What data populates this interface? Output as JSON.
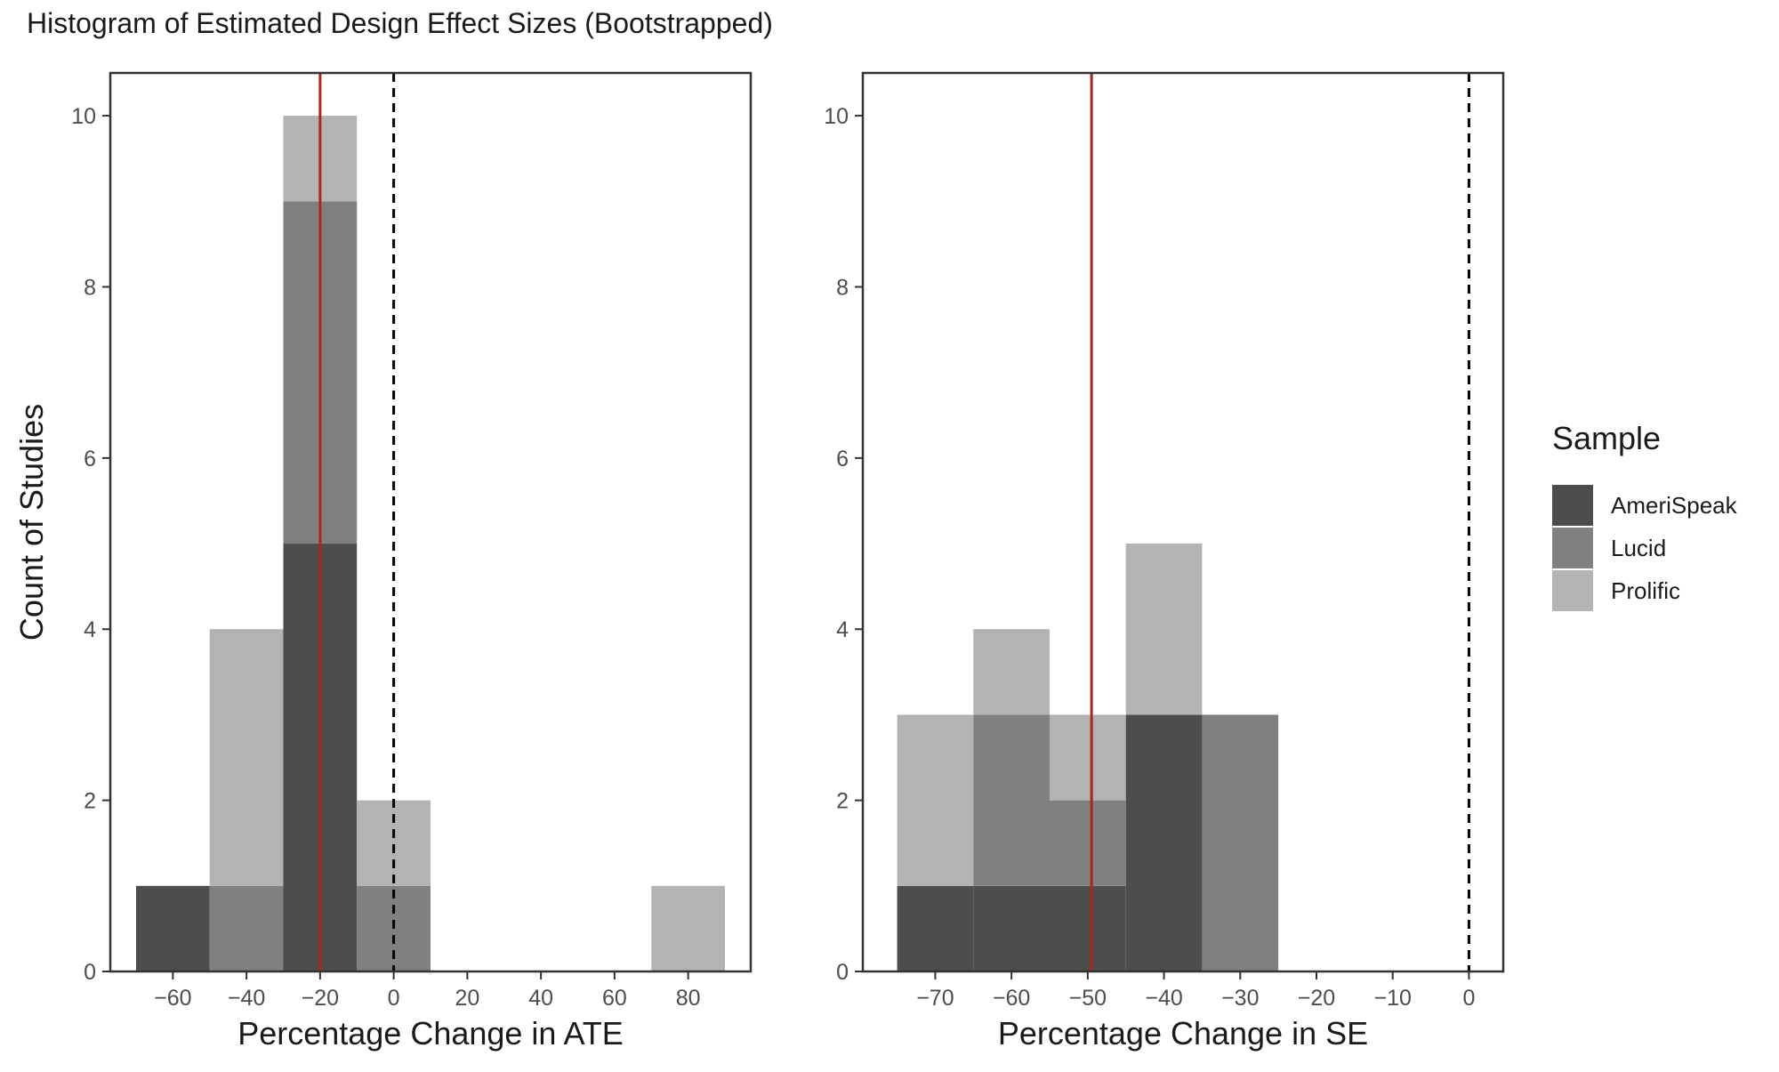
{
  "title": "Histogram of Estimated Design Effect Sizes (Bootstrapped)",
  "legend": {
    "title": "Sample",
    "items": [
      {
        "label": "AmeriSpeak",
        "color": "#4d4d4d"
      },
      {
        "label": "Lucid",
        "color": "#808080"
      },
      {
        "label": "Prolific",
        "color": "#b3b3b3"
      }
    ]
  },
  "chart_data": [
    {
      "type": "bar",
      "stacked": true,
      "histogram": true,
      "xlabel": "Percentage Change in ATE",
      "ylabel": "Count of Studies",
      "xlim": [
        -77,
        97
      ],
      "ylim": [
        0,
        10.5
      ],
      "xticks": [
        -60,
        -40,
        -20,
        0,
        20,
        40,
        60,
        80
      ],
      "xtick_labels": [
        "−60",
        "−40",
        "−20",
        "0",
        "20",
        "40",
        "60",
        "80"
      ],
      "yticks": [
        0,
        2,
        4,
        6,
        8,
        10
      ],
      "bins": [
        [
          -70,
          -50
        ],
        [
          -50,
          -30
        ],
        [
          -30,
          -10
        ],
        [
          -10,
          10
        ],
        [
          70,
          90
        ]
      ],
      "series": [
        {
          "name": "AmeriSpeak",
          "values": [
            1,
            0,
            5,
            0,
            0
          ]
        },
        {
          "name": "Lucid",
          "values": [
            0,
            1,
            4,
            1,
            0
          ]
        },
        {
          "name": "Prolific",
          "values": [
            0,
            3,
            1,
            1,
            1
          ]
        }
      ],
      "vlines": [
        {
          "x": -20,
          "color": "#b22222",
          "style": "solid"
        },
        {
          "x": 0,
          "color": "#000000",
          "style": "dashed"
        }
      ],
      "grid": false
    },
    {
      "type": "bar",
      "stacked": true,
      "histogram": true,
      "xlabel": "Percentage Change in SE",
      "ylabel": "",
      "xlim": [
        -79.5,
        4.5
      ],
      "ylim": [
        0,
        10.5
      ],
      "xticks": [
        -70,
        -60,
        -50,
        -40,
        -30,
        -20,
        -10,
        0
      ],
      "xtick_labels": [
        "−70",
        "−60",
        "−50",
        "−40",
        "−30",
        "−20",
        "−10",
        "0"
      ],
      "yticks": [
        0,
        2,
        4,
        6,
        8,
        10
      ],
      "bins": [
        [
          -75,
          -65
        ],
        [
          -65,
          -55
        ],
        [
          -55,
          -45
        ],
        [
          -45,
          -35
        ],
        [
          -35,
          -25
        ]
      ],
      "series": [
        {
          "name": "AmeriSpeak",
          "values": [
            1,
            1,
            1,
            3,
            0
          ]
        },
        {
          "name": "Lucid",
          "values": [
            0,
            2,
            1,
            0,
            3
          ]
        },
        {
          "name": "Prolific",
          "values": [
            2,
            1,
            1,
            2,
            0
          ]
        }
      ],
      "vlines": [
        {
          "x": -49.5,
          "color": "#b22222",
          "style": "solid"
        },
        {
          "x": 0,
          "color": "#000000",
          "style": "dashed"
        }
      ],
      "grid": false
    }
  ]
}
